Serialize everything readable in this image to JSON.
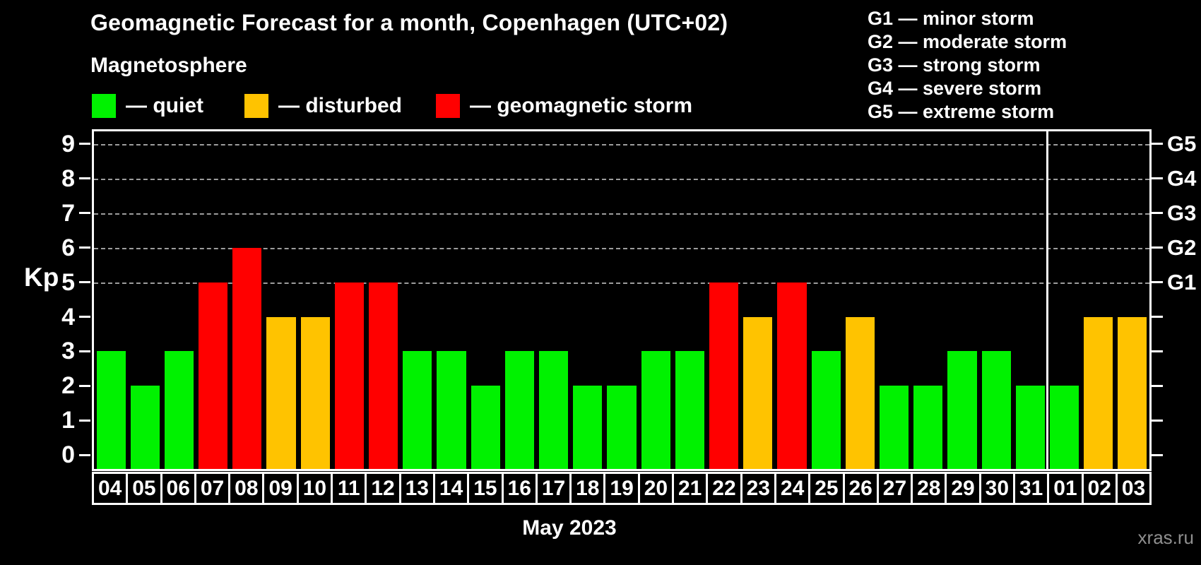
{
  "header": {
    "title": "Geomagnetic Forecast for a month, Copenhagen (UTC+02)",
    "subtitle": "Magnetosphere",
    "legend": [
      {
        "label": "— quiet",
        "status": "quiet",
        "color": "#00f200"
      },
      {
        "label": "— disturbed",
        "status": "disturbed",
        "color": "#ffc300"
      },
      {
        "label": "— geomagnetic storm",
        "status": "storm",
        "color": "#ff0000"
      }
    ]
  },
  "g_legend": [
    "G1 — minor storm",
    "G2 — moderate storm",
    "G3 — strong storm",
    "G4 — severe storm",
    "G5 — extreme storm"
  ],
  "axis": {
    "kp_label": "Kp",
    "xlabel": "May 2023",
    "left_tick_values": [
      0,
      1,
      2,
      3,
      4,
      5,
      6,
      7,
      8,
      9
    ],
    "right_g_labels": [
      {
        "kp": 9,
        "label": "G5"
      },
      {
        "kp": 8,
        "label": "G4"
      },
      {
        "kp": 7,
        "label": "G3"
      },
      {
        "kp": 6,
        "label": "G2"
      },
      {
        "kp": 5,
        "label": "G1"
      }
    ]
  },
  "watermark": "xras.ru",
  "chart_data": {
    "type": "bar",
    "title": "Geomagnetic Forecast for a month, Copenhagen (UTC+02)",
    "xlabel": "May 2023",
    "ylabel": "Kp",
    "ylim": [
      -0.4,
      9.36
    ],
    "grid": "dashed horizontal at Kp 5-9 (G1-G5 levels)",
    "categories": [
      "04",
      "05",
      "06",
      "07",
      "08",
      "09",
      "10",
      "11",
      "12",
      "13",
      "14",
      "15",
      "16",
      "17",
      "18",
      "19",
      "20",
      "21",
      "22",
      "23",
      "24",
      "25",
      "26",
      "27",
      "28",
      "29",
      "30",
      "31",
      "01",
      "02",
      "03"
    ],
    "values": [
      3,
      2,
      3,
      5,
      6,
      4,
      4,
      5,
      5,
      3,
      3,
      2,
      3,
      3,
      2,
      2,
      3,
      3,
      5,
      4,
      5,
      3,
      4,
      2,
      2,
      3,
      3,
      2,
      2,
      4,
      4
    ],
    "statuses": [
      "quiet",
      "quiet",
      "quiet",
      "storm",
      "storm",
      "disturbed",
      "disturbed",
      "storm",
      "storm",
      "quiet",
      "quiet",
      "quiet",
      "quiet",
      "quiet",
      "quiet",
      "quiet",
      "quiet",
      "quiet",
      "storm",
      "disturbed",
      "storm",
      "quiet",
      "disturbed",
      "quiet",
      "quiet",
      "quiet",
      "quiet",
      "quiet",
      "quiet",
      "disturbed",
      "disturbed"
    ],
    "colors": {
      "quiet": "#00f200",
      "disturbed": "#ffc300",
      "storm": "#ff0000"
    },
    "month_boundary_index": 28,
    "g_scale": {
      "G1": 5,
      "G2": 6,
      "G3": 7,
      "G4": 8,
      "G5": 9
    }
  }
}
